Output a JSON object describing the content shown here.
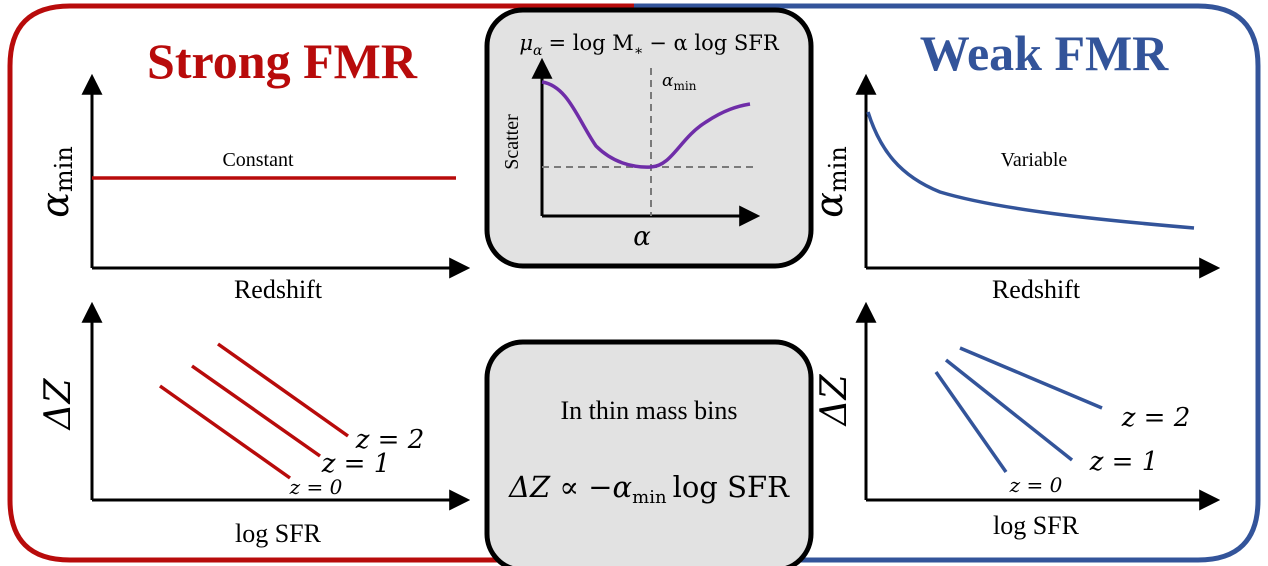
{
  "colors": {
    "strong": "#b80b0b",
    "weak": "#33549a",
    "purple": "#6f2da8",
    "panel_fill": "#e2e2e2",
    "ink": "#000000",
    "dash": "#7a7a7a"
  },
  "left": {
    "title": "Strong FMR",
    "top_panel": {
      "ylabel_sym": "α",
      "ylabel_sub": "min",
      "xlabel": "Redshift",
      "curve_label": "Constant"
    },
    "bottom_panel": {
      "ylabel": "ΔZ",
      "xlabel": "log SFR",
      "lines": [
        {
          "label": "z = 0"
        },
        {
          "label": "z = 1"
        },
        {
          "label": "z = 2"
        }
      ]
    }
  },
  "right": {
    "title": "Weak FMR",
    "top_panel": {
      "ylabel_sym": "α",
      "ylabel_sub": "min",
      "xlabel": "Redshift",
      "curve_label": "Variable"
    },
    "bottom_panel": {
      "ylabel": "ΔZ",
      "xlabel": "log SFR",
      "lines": [
        {
          "label": "z = 0"
        },
        {
          "label": "z = 1"
        },
        {
          "label": "z = 2"
        }
      ]
    }
  },
  "center_top": {
    "equation_mu": "μ",
    "equation_mu_sub": "α",
    "equation_rest": "= log M",
    "equation_star": "∗",
    "equation_tail": "− α log SFR",
    "ylabel": "Scatter",
    "xlabel": "α",
    "marker_sym": "α",
    "marker_sub": "min"
  },
  "center_bottom": {
    "line1": "In thin mass bins",
    "eq_lhs": "ΔZ ∝ −α",
    "eq_sub": "min",
    "eq_rhs": "log SFR"
  }
}
